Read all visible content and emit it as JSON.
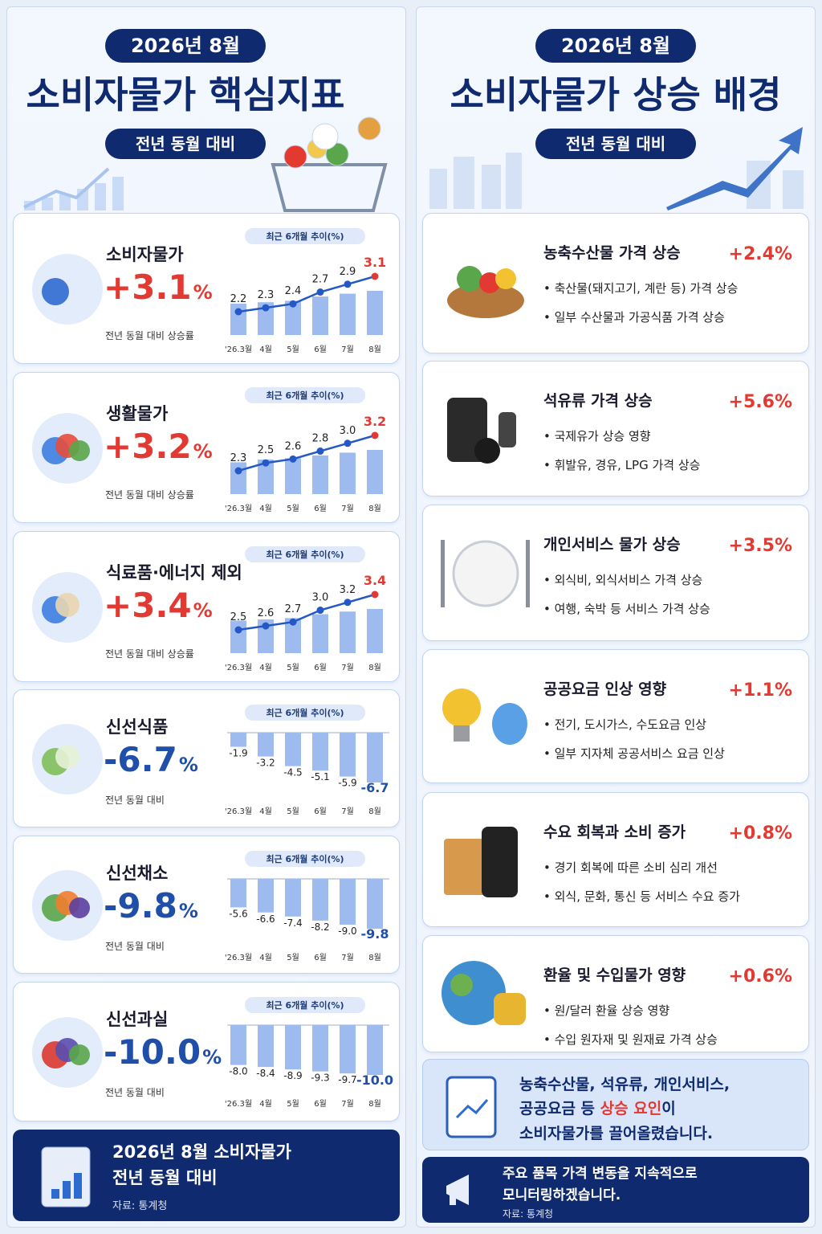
{
  "left": {
    "badge": "2026년 8월",
    "title": "소비자물가 핵심지표",
    "subtitle": "전년 동월 대비",
    "cards": [
      {
        "name": "소비자물가",
        "value": "+3.1",
        "unit": "%",
        "desc": "전년 동월 대비 상승률",
        "chart": {
          "type": "bar-line",
          "title": "최근 6개월 추이(%)",
          "categories": [
            "'26.3월",
            "4월",
            "5월",
            "6월",
            "7월",
            "8월"
          ],
          "values": [
            2.2,
            2.3,
            2.4,
            2.7,
            2.9,
            3.1
          ],
          "value_labels": [
            "2.2",
            "2.3",
            "2.4",
            "2.7",
            "2.9",
            "3.1"
          ]
        }
      },
      {
        "name": "생활물가",
        "value": "+3.2",
        "unit": "%",
        "desc": "전년 동월 대비 상승률",
        "chart": {
          "type": "bar-line",
          "title": "최근 6개월 추이(%)",
          "categories": [
            "'26.3월",
            "4월",
            "5월",
            "6월",
            "7월",
            "8월"
          ],
          "values": [
            2.3,
            2.5,
            2.6,
            2.8,
            3.0,
            3.2
          ],
          "value_labels": [
            "2.3",
            "2.5",
            "2.6",
            "2.8",
            "3.0",
            "3.2"
          ]
        }
      },
      {
        "name": "식료품·에너지 제외",
        "value": "+3.4",
        "unit": "%",
        "desc": "전년 동월 대비 상승률",
        "chart": {
          "type": "bar-line",
          "title": "최근 6개월 추이(%)",
          "categories": [
            "'26.3월",
            "4월",
            "5월",
            "6월",
            "7월",
            "8월"
          ],
          "values": [
            2.5,
            2.6,
            2.7,
            3.0,
            3.2,
            3.4
          ],
          "value_labels": [
            "2.5",
            "2.6",
            "2.7",
            "3.0",
            "3.2",
            "3.4"
          ]
        }
      },
      {
        "name": "신선식품",
        "value": "-6.7",
        "unit": "%",
        "desc": "전년 동월 대비",
        "chart": {
          "type": "bar",
          "title": "최근 6개월 추이(%)",
          "categories": [
            "'26.3월",
            "4월",
            "5월",
            "6월",
            "7월",
            "8월"
          ],
          "values": [
            -1.9,
            -3.2,
            -4.5,
            -5.1,
            -5.9,
            -6.7
          ],
          "value_labels": [
            "-1.9",
            "-3.2",
            "-4.5",
            "-5.1",
            "-5.9",
            "-6.7"
          ]
        }
      },
      {
        "name": "신선채소",
        "value": "-9.8",
        "unit": "%",
        "desc": "전년 동월 대비",
        "chart": {
          "type": "bar",
          "title": "최근 6개월 추이(%)",
          "categories": [
            "'26.3월",
            "4월",
            "5월",
            "6월",
            "7월",
            "8월"
          ],
          "values": [
            -5.6,
            -6.6,
            -7.4,
            -8.2,
            -9.0,
            -9.8
          ],
          "value_labels": [
            "-5.6",
            "-6.6",
            "-7.4",
            "-8.2",
            "-9.0",
            "-9.8"
          ]
        }
      },
      {
        "name": "신선과실",
        "value": "-10.0",
        "unit": "%",
        "desc": "전년 동월 대비",
        "chart": {
          "type": "bar",
          "title": "최근 6개월 추이(%)",
          "categories": [
            "'26.3월",
            "4월",
            "5월",
            "6월",
            "7월",
            "8월"
          ],
          "values": [
            -8.0,
            -8.4,
            -8.9,
            -9.3,
            -9.7,
            -10.0
          ],
          "value_labels": [
            "-8.0",
            "-8.4",
            "-8.9",
            "-9.3",
            "-9.7",
            "-10.0"
          ]
        }
      }
    ],
    "footer": {
      "line1": "2026년 8월 소비자물가",
      "line2": "전년 동월 대비",
      "source": "자료: 통계청"
    }
  },
  "right": {
    "badge": "2026년 8월",
    "title": "소비자물가 상승 배경",
    "subtitle": "전년 동월 대비",
    "items": [
      {
        "title": "농축수산물 가격 상승",
        "value": "+2.4%",
        "bullets": [
          "축산물(돼지고기, 계란 등) 가격 상승",
          "일부 수산물과 가공식품 가격 상승"
        ]
      },
      {
        "title": "석유류 가격 상승",
        "value": "+5.6%",
        "bullets": [
          "국제유가 상승 영향",
          "휘발유, 경유, LPG 가격 상승"
        ]
      },
      {
        "title": "개인서비스 물가 상승",
        "value": "+3.5%",
        "bullets": [
          "외식비, 외식서비스 가격 상승",
          "여행, 숙박 등 서비스 가격 상승"
        ]
      },
      {
        "title": "공공요금 인상 영향",
        "value": "+1.1%",
        "bullets": [
          "전기, 도시가스, 수도요금 인상",
          "일부 지자체 공공서비스 요금 인상"
        ]
      },
      {
        "title": "수요 회복과 소비 증가",
        "value": "+0.8%",
        "bullets": [
          "경기 회복에 따른 소비 심리 개선",
          "외식, 문화, 통신 등 서비스 수요 증가"
        ]
      },
      {
        "title": "환율 및 수입물가 영향",
        "value": "+0.6%",
        "bullets": [
          "원/달러 환율 상승 영향",
          "수입 원자재 및 원재료 가격 상승"
        ]
      }
    ],
    "summary": {
      "line1": "농축수산물, 석유류, 개인서비스,",
      "line2_before": "공공요금 등 ",
      "line2_highlight": "상승 요인",
      "line2_after": "이",
      "line3": "소비자물가를 끌어올렸습니다."
    },
    "footer": {
      "line1": "주요 품목 가격 변동을 지속적으로",
      "line2": "모니터링하겠습니다.",
      "source": "자료: 통계청"
    }
  }
}
